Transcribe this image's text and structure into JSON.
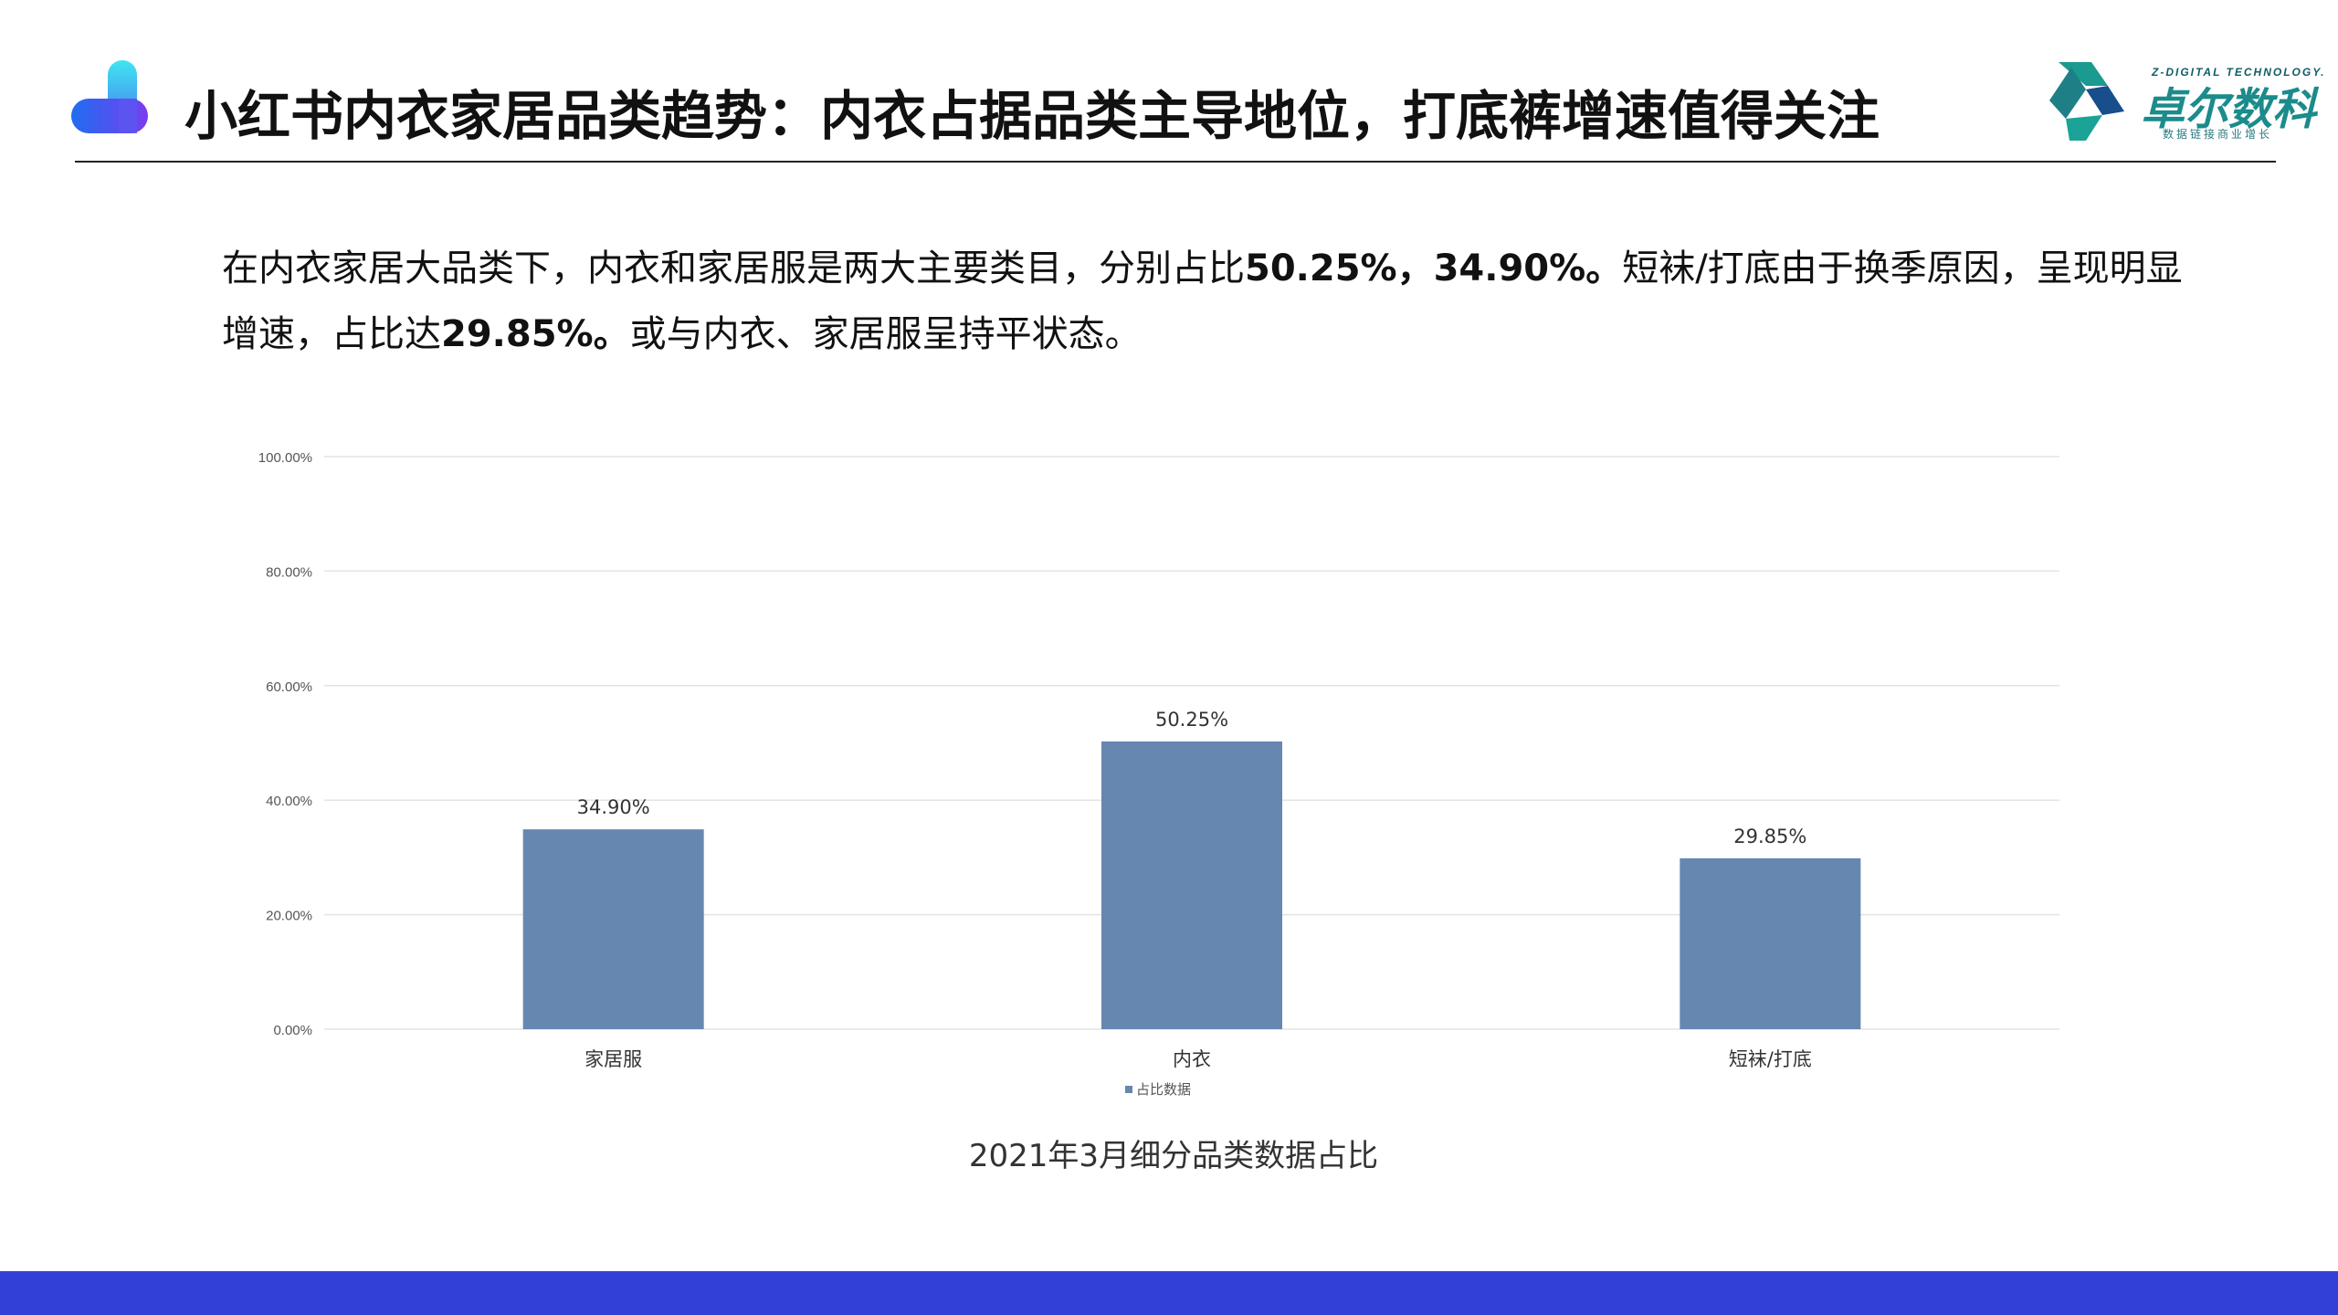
{
  "header": {
    "title": "小红书内衣家居品类趋势：内衣占据品类主导地位，打底裤增速值得关注",
    "brand_cn": "卓尔数科",
    "brand_en": "Z-DIGITAL TECHNOLOGY.",
    "brand_slogan": "数据链接商业增长",
    "brand_icon": "brand-logo-icon",
    "logo_icon": "app-logo-icon"
  },
  "summary": {
    "part1": "在内衣家居大品类下，内衣和家居服是两大主要类目，分别占比",
    "value1": "50.25%，34.90%。",
    "part2": "短袜/打底由于换季原因，呈现明显增速，占比达",
    "value2": "29.85%。",
    "part3": "或与内衣、家居服呈持平状态。"
  },
  "chart_data": {
    "type": "bar",
    "categories": [
      "家居服",
      "内衣",
      "短袜/打底"
    ],
    "series": [
      {
        "name": "占比数据",
        "values": [
          34.9,
          50.25,
          29.85
        ],
        "color": "#6687b0"
      }
    ],
    "data_labels": [
      "34.90%",
      "50.25%",
      "29.85%"
    ],
    "yticks": [
      "0.00%",
      "20.00%",
      "40.00%",
      "60.00%",
      "80.00%",
      "100.00%"
    ],
    "ylim": [
      0,
      100
    ],
    "grid": true,
    "legend_position": "bottom-center",
    "title": "2021年3月细分品类数据占比"
  },
  "colors": {
    "bar": "#6687b0",
    "grid": "#e3e3e3",
    "footer": "#3340d8",
    "brand": "#1b8b8b"
  }
}
